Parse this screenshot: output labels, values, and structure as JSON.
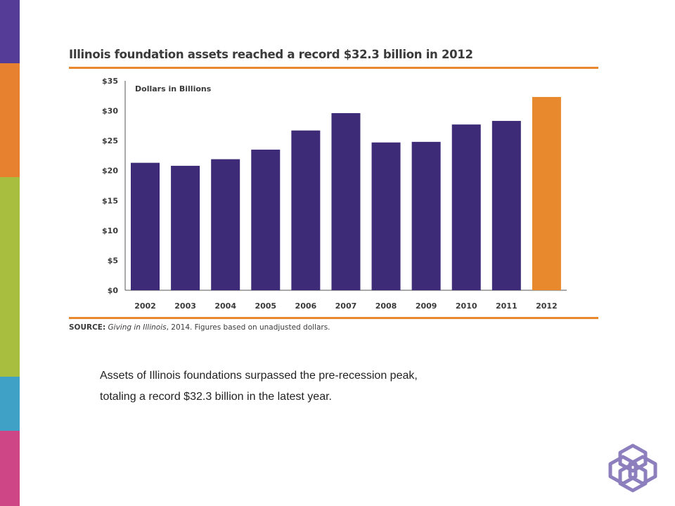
{
  "sidebar": {
    "colors": [
      "#553c96",
      "#e8812f",
      "#a8be3f",
      "#3fa1c5",
      "#cf4687"
    ]
  },
  "chart_data": {
    "type": "bar",
    "title": "Illinois foundation assets reached a record $32.3 billion in 2012",
    "ylabel": "Dollars in Billions",
    "categories": [
      "2002",
      "2003",
      "2004",
      "2005",
      "2006",
      "2007",
      "2008",
      "2009",
      "2010",
      "2011",
      "2012"
    ],
    "values": [
      21.3,
      20.8,
      21.9,
      23.5,
      26.7,
      29.6,
      24.7,
      24.8,
      27.7,
      28.3,
      32.3
    ],
    "ylim": [
      0,
      35
    ],
    "yticks": [
      0,
      5,
      10,
      15,
      20,
      25,
      30,
      35
    ],
    "ytick_labels": [
      "$0",
      "$5",
      "$10",
      "$15",
      "$20",
      "$25",
      "$30",
      "$35"
    ],
    "colors": {
      "default": "#3d2b78",
      "highlight": "#e8892e"
    },
    "highlight_category": "2012",
    "grid": false
  },
  "source": {
    "label": "SOURCE:",
    "text_italic": "Giving in Illinois",
    "text_rest": ", 2014. Figures based on unadjusted dollars."
  },
  "caption": {
    "line1": "Assets of Illinois foundations surpassed the pre-recession peak,",
    "line2": "totaling a record $32.3 billion in the latest year."
  },
  "logo": {
    "icon": "interlocking-knot-logo-icon"
  }
}
